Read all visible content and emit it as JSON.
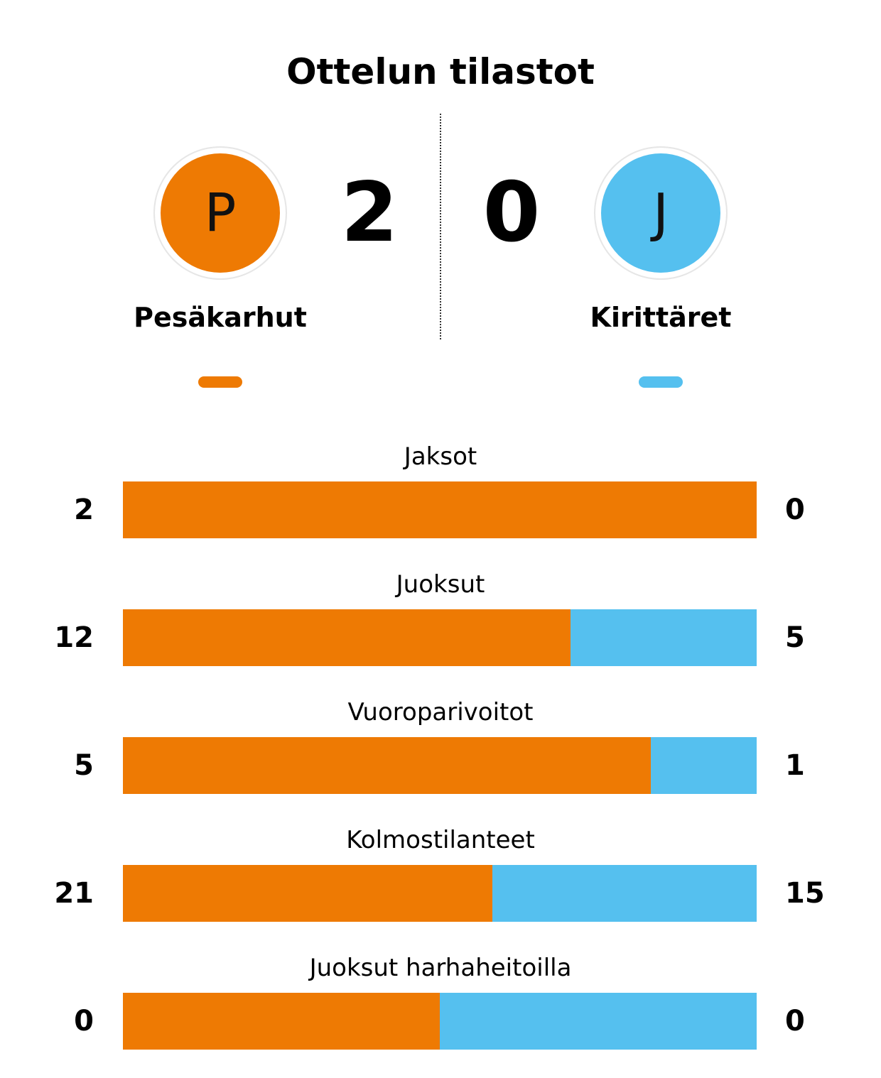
{
  "title": "Ottelun tilastot",
  "colors": {
    "home": "#EE7A03",
    "away": "#55C0EF"
  },
  "home": {
    "name": "Pesäkarhut",
    "logo_letter": "P",
    "score": "2"
  },
  "away": {
    "name": "Kirittäret",
    "logo_letter": "J",
    "score": "0"
  },
  "chart_data": {
    "type": "bar",
    "orientation": "horizontal-stacked-share",
    "categories": [
      "Jaksot",
      "Juoksut",
      "Vuoroparivoitot",
      "Kolmostilanteet",
      "Juoksut harhaheitoilla"
    ],
    "series": [
      {
        "name": "Pesäkarhut",
        "values": [
          2,
          12,
          5,
          21,
          0
        ]
      },
      {
        "name": "Kirittäret",
        "values": [
          0,
          5,
          1,
          15,
          0
        ]
      }
    ]
  }
}
